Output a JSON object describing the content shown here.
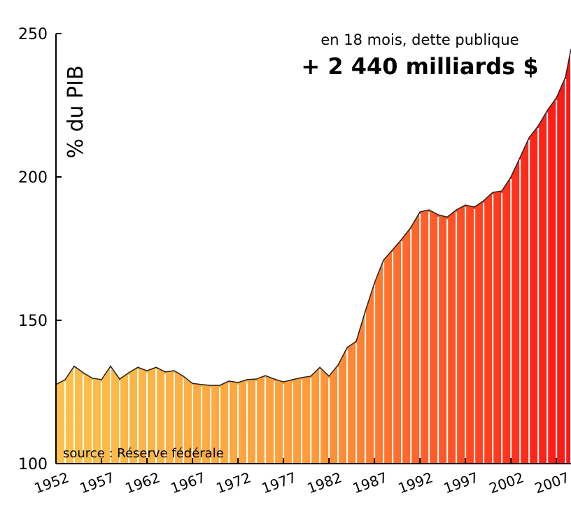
{
  "chart_data": {
    "type": "area",
    "annotations": [
      "en 18 mois, dette publique",
      "+ 2 440 milliards $"
    ],
    "y_label": "% du PIB",
    "source": "source : Réserve fédérale",
    "x": [
      1952,
      1953,
      1954,
      1955,
      1956,
      1957,
      1958,
      1959,
      1960,
      1961,
      1962,
      1963,
      1964,
      1965,
      1966,
      1967,
      1968,
      1969,
      1970,
      1971,
      1972,
      1973,
      1974,
      1975,
      1976,
      1977,
      1978,
      1979,
      1980,
      1981,
      1982,
      1983,
      1984,
      1985,
      1986,
      1987,
      1988,
      1989,
      1990,
      1991,
      1992,
      1993,
      1994,
      1995,
      1996,
      1997,
      1998,
      1999,
      2000,
      2001,
      2002,
      2003,
      2004,
      2005,
      2006,
      2007,
      2008,
      2008.6
    ],
    "values": [
      127.6,
      129.3,
      134,
      131.7,
      129.8,
      129.3,
      134,
      129.5,
      131.7,
      133.6,
      132.4,
      133.6,
      132,
      132.4,
      130.5,
      128,
      127.6,
      127.3,
      127.3,
      128.8,
      128.3,
      129.3,
      129.5,
      130.7,
      129.5,
      128.5,
      129.3,
      130,
      130.5,
      133.6,
      130.5,
      134.4,
      140.5,
      142.7,
      153.2,
      163,
      171,
      174.6,
      178.3,
      182.4,
      187.8,
      188.5,
      186.8,
      186,
      188.5,
      190.2,
      189.5,
      191.7,
      194.6,
      195.1,
      200,
      206.8,
      213.7,
      217.8,
      223.2,
      227.6,
      234.9,
      244.6
    ],
    "colors": [
      "#fbc24c",
      "#ff9a3a",
      "#ff1414"
    ],
    "xlim": [
      1952,
      2008.6
    ],
    "ylim": [
      100,
      250
    ],
    "xticks": [
      1952,
      1957,
      1962,
      1967,
      1972,
      1977,
      1982,
      1987,
      1992,
      1997,
      2002,
      2007
    ],
    "yticks": [
      100,
      150,
      200,
      250
    ]
  }
}
